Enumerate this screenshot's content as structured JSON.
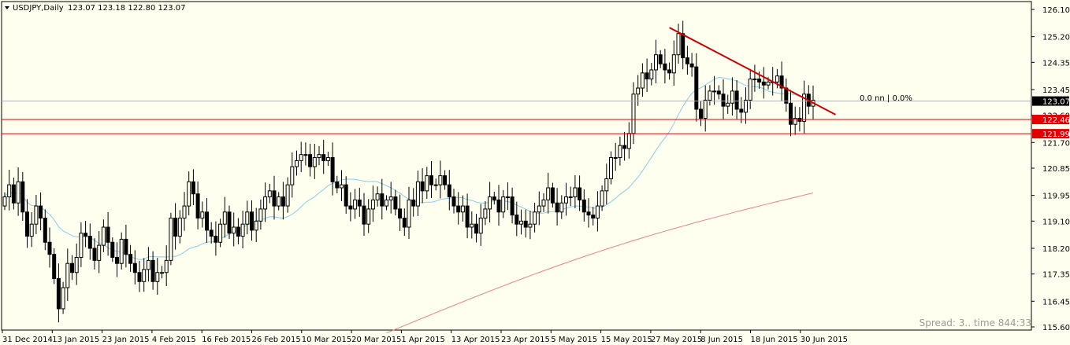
{
  "chart_data": {
    "type": "candlestick",
    "symbol_header": "USDJPY,Daily",
    "ohlc_header": "123.07 123.18 122.80 123.07",
    "y_axis": {
      "min": 115.6,
      "max": 126.1,
      "ticks": [
        "126.10",
        "125.20",
        "124.35",
        "123.45",
        "122.60",
        "121.70",
        "120.85",
        "119.95",
        "119.10",
        "118.20",
        "117.35",
        "116.45",
        "115.60"
      ]
    },
    "x_tick_labels": [
      "31 Dec 2014",
      "13 Jan 2015",
      "23 Jan 2015",
      "4 Feb 2015",
      "16 Feb 2015",
      "26 Feb 2015",
      "10 Mar 2015",
      "20 Mar 2015",
      "1 Apr 2015",
      "13 Apr 2015",
      "23 Apr 2015",
      "5 May 2015",
      "15 May 2015",
      "27 May 2015",
      "8 Jun 2015",
      "18 Jun 2015",
      "30 Jun 2015"
    ],
    "price_tags": [
      {
        "value": 123.07,
        "label": "123.07",
        "style": "current",
        "color": "#000000"
      },
      {
        "value": 122.46,
        "label": "122.46",
        "style": "level",
        "color": "#e00000"
      },
      {
        "value": 121.99,
        "label": "121.99",
        "style": "level",
        "color": "#e00000"
      }
    ],
    "current_price_line": 123.07,
    "horizontal_levels": [
      122.46,
      121.99
    ],
    "trendline": {
      "from": {
        "bar": 148,
        "price": 125.5
      },
      "to": {
        "bar": 185,
        "price": 122.62
      },
      "color": "#d00000"
    },
    "trendline_label": "0.0 nn | 0.0%",
    "ma_fast_color": "#87ceeb",
    "ma_slow_color": "#f08080",
    "ma_slow_visible_from_bar": 85,
    "closes": [
      119.9,
      120.3,
      119.7,
      120.4,
      119.4,
      118.6,
      119.0,
      119.6,
      119.2,
      118.4,
      118.0,
      117.2,
      116.2,
      116.9,
      117.7,
      117.4,
      117.9,
      118.7,
      118.6,
      118.2,
      117.8,
      118.3,
      118.9,
      118.4,
      117.9,
      117.7,
      118.5,
      118.0,
      117.7,
      117.4,
      117.1,
      117.5,
      117.8,
      117.1,
      117.4,
      117.4,
      117.8,
      119.2,
      118.6,
      119.2,
      119.6,
      120.4,
      120.0,
      119.2,
      119.4,
      118.8,
      118.6,
      118.4,
      119.0,
      119.4,
      118.7,
      118.9,
      118.6,
      119.0,
      119.4,
      118.8,
      119.1,
      119.5,
      119.9,
      120.1,
      119.6,
      119.9,
      119.6,
      120.3,
      120.9,
      121.1,
      121.3,
      121.3,
      120.9,
      121.2,
      121.3,
      121.1,
      121.2,
      120.4,
      120.2,
      120.3,
      119.6,
      119.5,
      119.8,
      119.6,
      119.0,
      119.5,
      119.8,
      120.0,
      119.6,
      119.8,
      119.9,
      119.5,
      119.2,
      118.9,
      119.8,
      119.6,
      120.4,
      120.1,
      120.6,
      120.3,
      120.3,
      120.6,
      120.3,
      119.9,
      119.6,
      119.4,
      119.6,
      118.9,
      119.0,
      118.7,
      119.2,
      119.5,
      119.9,
      119.8,
      119.4,
      119.9,
      119.9,
      119.3,
      119.0,
      119.1,
      118.9,
      119.0,
      119.4,
      119.6,
      119.8,
      120.2,
      119.7,
      119.4,
      119.7,
      119.9,
      119.9,
      120.2,
      119.8,
      119.4,
      119.3,
      119.2,
      119.6,
      120.1,
      120.5,
      121.2,
      121.2,
      121.6,
      121.5,
      122.0,
      123.3,
      123.5,
      124.0,
      123.8,
      124.1,
      124.6,
      124.3,
      124.1,
      124.0,
      124.6,
      125.3,
      124.5,
      124.3,
      124.2,
      122.8,
      122.5,
      123.1,
      123.4,
      123.4,
      123.3,
      122.9,
      123.0,
      123.4,
      122.8,
      122.7,
      123.1,
      123.8,
      123.8,
      123.7,
      123.6,
      123.7,
      123.7,
      123.9,
      123.5,
      123.0,
      122.3,
      122.5,
      122.4,
      123.3,
      122.9,
      123.1
    ],
    "spread_text": "Spread: 3.. time 844:33"
  }
}
